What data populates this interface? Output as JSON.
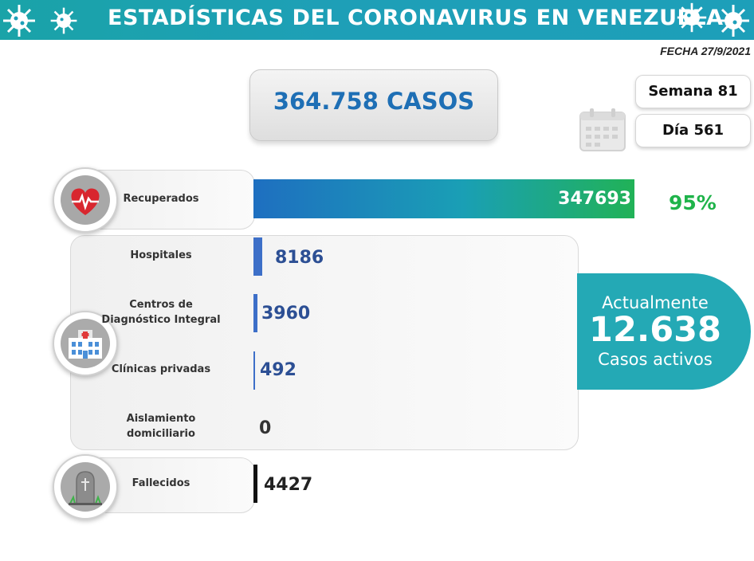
{
  "header": {
    "title": "ESTADÍSTICAS DEL CORONAVIRUS EN VENEZUELA"
  },
  "date_label": "FECHA 27/9/2021",
  "total": {
    "label": "364.758 CASOS"
  },
  "week_label": "Semana 81",
  "day_label": "Día 561",
  "percentage_label": "95%",
  "active": {
    "line1": "Actualmente",
    "value": "12.638",
    "line3": "Casos activos"
  },
  "rows": {
    "recuperados": {
      "label": "Recuperados",
      "value": "347693"
    },
    "hospitales": {
      "label": "Hospitales",
      "value": "8186"
    },
    "cdi": {
      "label_line1": "Centros de",
      "label_line2": "Diagnóstico Integral",
      "value": "3960"
    },
    "clinicas": {
      "label": "Clínicas privadas",
      "value": "492"
    },
    "aislamiento": {
      "label_line1": "Aislamiento",
      "label_line2": "domiciliario",
      "value": "0"
    },
    "fallecidos": {
      "label": "Fallecidos",
      "value": "4427"
    }
  },
  "colors": {
    "banner": "#1d9fb9",
    "recovered_start": "#1e6fc0",
    "recovered_end": "#21b257",
    "active_bg": "#24a9b5",
    "bar_blue": "#3d6fc8",
    "percent": "#1fb34a"
  },
  "chart_data": {
    "type": "bar",
    "categories": [
      "Recuperados",
      "Hospitales",
      "Centros de Diagnóstico Integral",
      "Clínicas privadas",
      "Aislamiento domiciliario",
      "Fallecidos"
    ],
    "values": [
      347693,
      8186,
      3960,
      492,
      0,
      4427
    ],
    "title": "",
    "xlabel": "",
    "ylabel": "",
    "orientation": "horizontal"
  }
}
